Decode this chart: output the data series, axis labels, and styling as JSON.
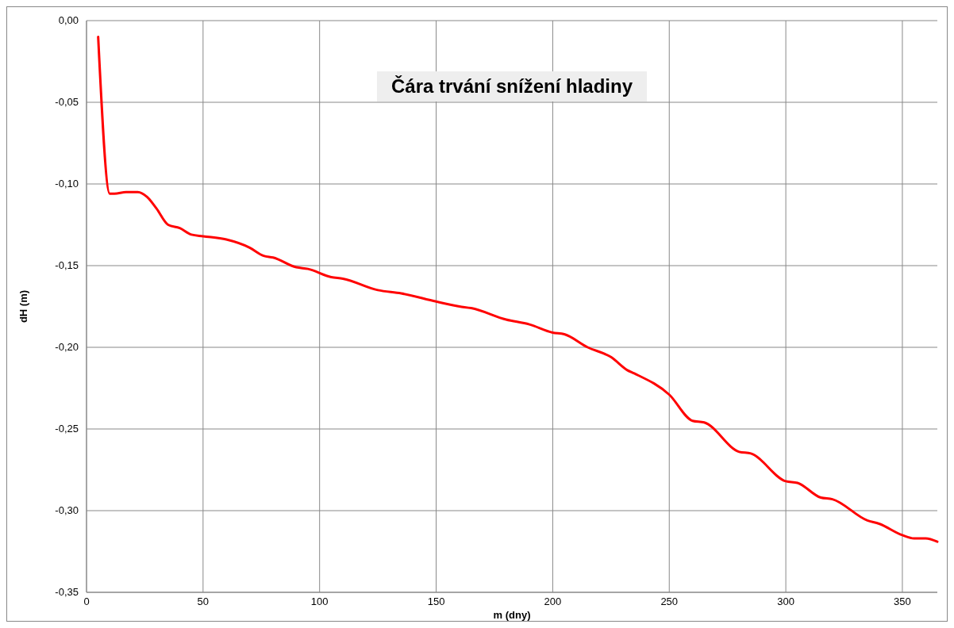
{
  "chart_data": {
    "type": "line",
    "title": "Čára trvání snížení hladiny",
    "xlabel": "m (dny)",
    "ylabel": "dH (m)",
    "x": [
      5,
      10,
      12,
      17,
      22,
      26,
      30,
      35,
      40,
      45,
      50,
      60,
      70,
      76,
      80,
      90,
      95,
      105,
      110,
      125,
      135,
      150,
      160,
      165,
      180,
      190,
      200,
      205,
      215,
      225,
      232,
      235,
      250,
      260,
      265,
      280,
      285,
      300,
      305,
      315,
      320,
      335,
      340,
      350,
      355,
      360,
      365
    ],
    "series": [
      {
        "color": "#ff0000",
        "values": [
          -0.01,
          -0.106,
          -0.106,
          -0.105,
          -0.105,
          -0.108,
          -0.115,
          -0.125,
          -0.127,
          -0.131,
          -0.132,
          -0.134,
          -0.139,
          -0.144,
          -0.145,
          -0.151,
          -0.152,
          -0.157,
          -0.158,
          -0.165,
          -0.167,
          -0.172,
          -0.175,
          -0.176,
          -0.183,
          -0.186,
          -0.191,
          -0.192,
          -0.2,
          -0.206,
          -0.214,
          -0.216,
          -0.229,
          -0.245,
          -0.246,
          -0.264,
          -0.265,
          -0.282,
          -0.283,
          -0.292,
          -0.293,
          -0.306,
          -0.308,
          -0.315,
          -0.317,
          -0.317,
          -0.319
        ]
      }
    ],
    "xlim": [
      0,
      365
    ],
    "xticks": [
      0,
      50,
      100,
      150,
      200,
      250,
      300,
      350
    ],
    "ylim": [
      -0.35,
      0
    ],
    "yticks": [
      {
        "value": 0,
        "label": "0,00"
      },
      {
        "value": -0.05,
        "label": "-0,05"
      },
      {
        "value": -0.1,
        "label": "-0,10"
      },
      {
        "value": -0.15,
        "label": "-0,15"
      },
      {
        "value": -0.2,
        "label": "-0,20"
      },
      {
        "value": -0.25,
        "label": "-0,25"
      },
      {
        "value": -0.3,
        "label": "-0,30"
      },
      {
        "value": -0.35,
        "label": "-0,35"
      }
    ],
    "grid": true,
    "marker": "none",
    "line_style": "solid"
  }
}
